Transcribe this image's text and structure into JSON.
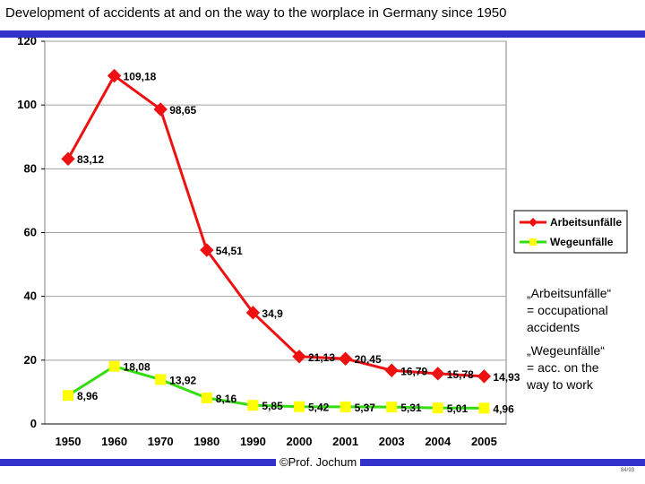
{
  "slide": {
    "title": "Development of accidents at and on the way to the worplace in Germany since 1950",
    "copyright": "©Prof. Jochum",
    "page_number": "84/93",
    "accent_color": "#3333cc"
  },
  "notes": [
    {
      "lines": [
        "„Arbeitsunfälle“",
        "= occupational",
        "accidents"
      ]
    },
    {
      "lines": [
        "„Wegeunfälle“",
        "= acc. on the",
        "way to work"
      ]
    }
  ],
  "chart_data": {
    "type": "line",
    "title": "Development of accidents at and on the way to the worplace in Germany since 1950",
    "xlabel": "",
    "ylabel": "",
    "categories": [
      "1950",
      "1960",
      "1970",
      "1980",
      "1990",
      "2000",
      "2001",
      "2003",
      "2004",
      "2005"
    ],
    "ylim": [
      0,
      120
    ],
    "yticks": [
      0,
      20,
      40,
      60,
      80,
      100,
      120
    ],
    "grid": true,
    "legend_position": "right",
    "series": [
      {
        "name": "Arbeitsunfälle",
        "color": "#ee1111",
        "marker": "diamond",
        "values": [
          83.12,
          109.18,
          98.65,
          54.51,
          34.9,
          21.13,
          20.45,
          16.79,
          15.78,
          14.93
        ],
        "labels": [
          "83,12",
          "109,18",
          "98,65",
          "54,51",
          "34,9",
          "21,13",
          "20,45",
          "16,79",
          "15,78",
          "14,93"
        ]
      },
      {
        "name": "Wegeunfälle",
        "color": "#33dd11",
        "marker_color": "#ffff00",
        "marker": "square",
        "values": [
          8.96,
          18.08,
          13.92,
          8.16,
          5.85,
          5.42,
          5.37,
          5.31,
          5.01,
          4.96
        ],
        "labels": [
          "8,96",
          "18,08",
          "13,92",
          "8,16",
          "5,85",
          "5,42",
          "5,37",
          "5,31",
          "5,01",
          "4,96"
        ]
      }
    ]
  }
}
